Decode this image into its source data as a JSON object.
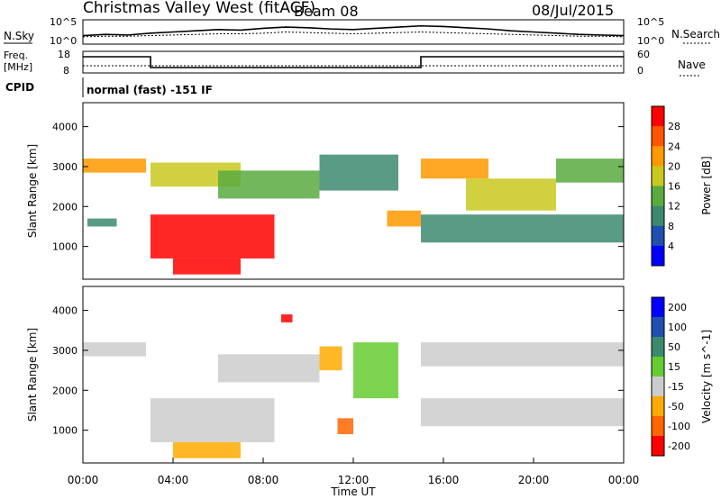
{
  "header": {
    "radar": "Christmas Valley West (fitACF)",
    "beam": "Beam 08",
    "date": "08/Jul/2015"
  },
  "panels": {
    "nsky_label": "N.Sky",
    "nsearch_label": "N.Search",
    "freq_label_line1": "Freq.",
    "freq_label_line2": "[MHz]",
    "nave_label": "Nave",
    "cpid_label": "CPID",
    "cpid_text": "normal (fast) -151 IF",
    "noise_left_ticks": [
      "10^5",
      "10^0"
    ],
    "noise_right_ticks": [
      "10^5",
      "10^0"
    ],
    "freq_left_ticks": [
      "18",
      "8"
    ],
    "freq_right_ticks": [
      "60",
      "0"
    ]
  },
  "colors": {
    "power_scale": [
      "#0000ff",
      "#1f4fb0",
      "#3c8a6e",
      "#5aaa40",
      "#c8c820",
      "#ff9900",
      "#ff5500",
      "#ff0000"
    ],
    "velocity_scale": [
      "#0000ff",
      "#1f4fb0",
      "#3c8a6e",
      "#66cc33",
      "#cccccc",
      "#ffaa00",
      "#ff6600",
      "#ff0000"
    ]
  },
  "chart_data": [
    {
      "type": "line",
      "name": "noise",
      "series": [
        {
          "name": "N.Sky",
          "values": [
            1.4,
            1.6,
            1.5,
            1.8,
            2.0,
            2.2,
            2.4,
            2.3,
            2.6,
            2.8,
            2.7,
            2.5,
            2.4,
            2.6,
            2.8,
            3.0,
            2.9,
            2.7,
            2.5,
            2.2,
            2.0,
            1.8,
            1.6,
            1.5,
            1.4
          ]
        },
        {
          "name": "N.Search",
          "values": [
            1.2,
            1.3,
            1.3,
            1.4,
            1.5,
            1.6,
            1.7,
            1.7,
            1.8,
            2.0,
            1.9,
            1.8,
            1.7,
            1.8,
            1.9,
            2.0,
            1.9,
            1.8,
            1.7,
            1.6,
            1.5,
            1.4,
            1.3,
            1.3,
            1.2
          ]
        }
      ],
      "x_hours": [
        0,
        1,
        2,
        3,
        4,
        5,
        6,
        7,
        8,
        9,
        10,
        11,
        12,
        13,
        14,
        15,
        16,
        17,
        18,
        19,
        20,
        21,
        22,
        23,
        24
      ]
    },
    {
      "type": "line",
      "name": "frequency",
      "series": [
        {
          "name": "Freq",
          "points": [
            [
              0,
              15.5
            ],
            [
              3,
              15.5
            ],
            [
              3,
              10.5
            ],
            [
              15,
              10.5
            ],
            [
              15,
              15.5
            ],
            [
              24,
              15.5
            ]
          ]
        },
        {
          "name": "Nave",
          "points": [
            [
              0,
              20
            ],
            [
              24,
              20
            ]
          ]
        }
      ],
      "freq_ylim": [
        8,
        18
      ],
      "nave_ylim": [
        0,
        60
      ]
    },
    {
      "type": "heatmap",
      "name": "power",
      "xlabel": "Time UT",
      "ylabel": "Slant Range [km]",
      "xlim": [
        0,
        24
      ],
      "ylim": [
        180,
        4600
      ],
      "x_ticks": [
        "00:00",
        "04:00",
        "08:00",
        "12:00",
        "16:00",
        "20:00",
        "00:00"
      ],
      "y_ticks": [
        1000,
        2000,
        3000,
        4000
      ],
      "colorbar_label": "Power [dB]",
      "colorbar_ticks": [
        4,
        8,
        12,
        16,
        20,
        24,
        28
      ],
      "features": [
        {
          "t0": 0.0,
          "t1": 2.8,
          "r0": 2850,
          "r1": 3200,
          "level": 5
        },
        {
          "t0": 0.2,
          "t1": 1.5,
          "r0": 1500,
          "r1": 1700,
          "level": 2
        },
        {
          "t0": 3.0,
          "t1": 7.0,
          "r0": 2500,
          "r1": 3100,
          "level": 4
        },
        {
          "t0": 3.0,
          "t1": 8.5,
          "r0": 700,
          "r1": 1800,
          "level": 7
        },
        {
          "t0": 4.0,
          "t1": 7.0,
          "r0": 300,
          "r1": 700,
          "level": 7
        },
        {
          "t0": 6.0,
          "t1": 10.5,
          "r0": 2200,
          "r1": 2900,
          "level": 3
        },
        {
          "t0": 10.5,
          "t1": 14.0,
          "r0": 2400,
          "r1": 3300,
          "level": 2
        },
        {
          "t0": 13.5,
          "t1": 15.0,
          "r0": 1500,
          "r1": 1900,
          "level": 5
        },
        {
          "t0": 15.0,
          "t1": 18.0,
          "r0": 2700,
          "r1": 3200,
          "level": 5
        },
        {
          "t0": 17.0,
          "t1": 21.0,
          "r0": 1900,
          "r1": 2700,
          "level": 4
        },
        {
          "t0": 15.0,
          "t1": 24.0,
          "r0": 1100,
          "r1": 1800,
          "level": 2
        },
        {
          "t0": 21.0,
          "t1": 24.0,
          "r0": 2600,
          "r1": 3200,
          "level": 3
        }
      ]
    },
    {
      "type": "heatmap",
      "name": "velocity",
      "xlabel": "Time UT",
      "ylabel": "Slant Range [km]",
      "xlim": [
        0,
        24
      ],
      "ylim": [
        180,
        4600
      ],
      "x_ticks": [
        "00:00",
        "04:00",
        "08:00",
        "12:00",
        "16:00",
        "20:00",
        "00:00"
      ],
      "y_ticks": [
        1000,
        2000,
        3000,
        4000
      ],
      "colorbar_label": "Velocity [m s^-1]",
      "colorbar_ticks": [
        "200",
        "100",
        "50",
        "15",
        "-15",
        "-50",
        "-100",
        "-200"
      ],
      "features": [
        {
          "t0": 0.0,
          "t1": 2.8,
          "r0": 2850,
          "r1": 3200,
          "level": 4
        },
        {
          "t0": 3.0,
          "t1": 8.5,
          "r0": 700,
          "r1": 1800,
          "level": 4
        },
        {
          "t0": 4.0,
          "t1": 7.0,
          "r0": 300,
          "r1": 700,
          "level": 5
        },
        {
          "t0": 6.0,
          "t1": 10.5,
          "r0": 2200,
          "r1": 2900,
          "level": 4
        },
        {
          "t0": 8.8,
          "t1": 9.3,
          "r0": 3700,
          "r1": 3900,
          "level": 7
        },
        {
          "t0": 10.5,
          "t1": 11.5,
          "r0": 2500,
          "r1": 3100,
          "level": 5
        },
        {
          "t0": 11.3,
          "t1": 12.0,
          "r0": 900,
          "r1": 1300,
          "level": 6
        },
        {
          "t0": 12.0,
          "t1": 14.0,
          "r0": 1800,
          "r1": 3200,
          "level": 3
        },
        {
          "t0": 15.0,
          "t1": 24.0,
          "r0": 2600,
          "r1": 3200,
          "level": 4
        },
        {
          "t0": 15.0,
          "t1": 24.0,
          "r0": 1100,
          "r1": 1800,
          "level": 4
        }
      ]
    }
  ]
}
